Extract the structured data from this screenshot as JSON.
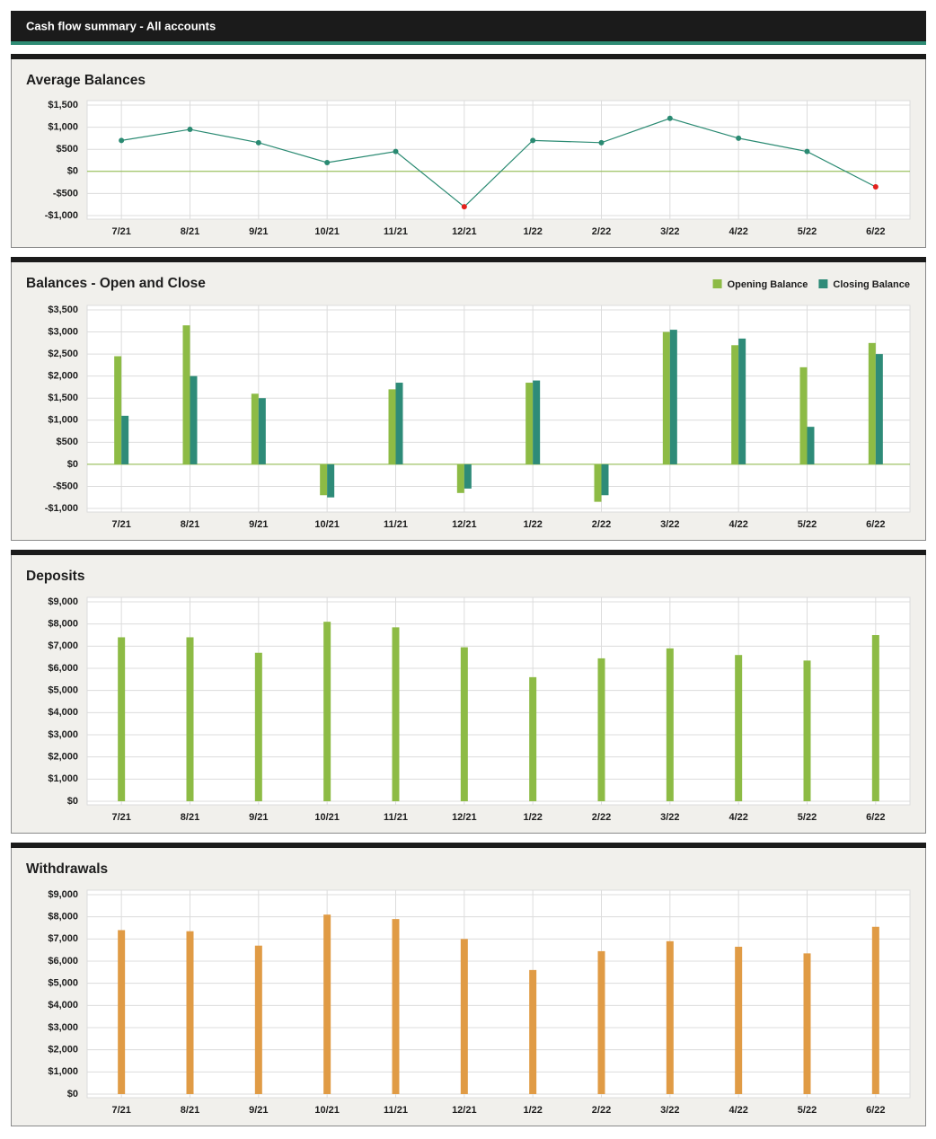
{
  "header": {
    "title": "Cash flow summary -  All accounts"
  },
  "chart_data": [
    {
      "type": "line",
      "title": "Average Balances",
      "categories": [
        "7/21",
        "8/21",
        "9/21",
        "10/21",
        "11/21",
        "12/21",
        "1/22",
        "2/22",
        "3/22",
        "4/22",
        "5/22",
        "6/22"
      ],
      "values": [
        700,
        950,
        650,
        200,
        450,
        -800,
        700,
        650,
        1200,
        750,
        450,
        -350
      ],
      "color": "#2a8a72",
      "negative_color": "#e3211c",
      "ylim": [
        -1000,
        1500
      ],
      "yticks": [
        {
          "value": -1000,
          "label": "-$1,000"
        },
        {
          "value": -500,
          "label": "-$500"
        },
        {
          "value": 0,
          "label": "$0"
        },
        {
          "value": 500,
          "label": "$500"
        },
        {
          "value": 1000,
          "label": "$1,000"
        },
        {
          "value": 1500,
          "label": "$1,500"
        }
      ],
      "grid": true
    },
    {
      "type": "bar",
      "title": "Balances - Open and Close",
      "categories": [
        "7/21",
        "8/21",
        "9/21",
        "10/21",
        "11/21",
        "12/21",
        "1/22",
        "2/22",
        "3/22",
        "4/22",
        "5/22",
        "6/22"
      ],
      "series": [
        {
          "name": "Opening Balance",
          "color": "#8dbb45",
          "values": [
            2450,
            3150,
            1600,
            -700,
            1700,
            -650,
            1850,
            -850,
            3000,
            2700,
            2200,
            2750
          ]
        },
        {
          "name": "Closing Balance",
          "color": "#2e8b78",
          "values": [
            1100,
            2000,
            1500,
            -750,
            1850,
            -550,
            1900,
            -700,
            3050,
            2850,
            850,
            2500
          ]
        }
      ],
      "legend": "top-right",
      "ylim": [
        -1000,
        3500
      ],
      "yticks": [
        {
          "value": -1000,
          "label": "-$1,000"
        },
        {
          "value": -500,
          "label": "-$500"
        },
        {
          "value": 0,
          "label": "$0"
        },
        {
          "value": 500,
          "label": "$500"
        },
        {
          "value": 1000,
          "label": "$1,000"
        },
        {
          "value": 1500,
          "label": "$1,500"
        },
        {
          "value": 2000,
          "label": "$2,000"
        },
        {
          "value": 2500,
          "label": "$2,500"
        },
        {
          "value": 3000,
          "label": "$3,000"
        },
        {
          "value": 3500,
          "label": "$3,500"
        }
      ],
      "grid": true
    },
    {
      "type": "bar",
      "title": "Deposits",
      "categories": [
        "7/21",
        "8/21",
        "9/21",
        "10/21",
        "11/21",
        "12/21",
        "1/22",
        "2/22",
        "3/22",
        "4/22",
        "5/22",
        "6/22"
      ],
      "values": [
        7400,
        7400,
        6700,
        8100,
        7850,
        6950,
        5600,
        6450,
        6900,
        6600,
        6350,
        7500
      ],
      "color": "#8dbb45",
      "ylim": [
        0,
        9000
      ],
      "yticks": [
        {
          "value": 0,
          "label": "$0"
        },
        {
          "value": 1000,
          "label": "$1,000"
        },
        {
          "value": 2000,
          "label": "$2,000"
        },
        {
          "value": 3000,
          "label": "$3,000"
        },
        {
          "value": 4000,
          "label": "$4,000"
        },
        {
          "value": 5000,
          "label": "$5,000"
        },
        {
          "value": 6000,
          "label": "$6,000"
        },
        {
          "value": 7000,
          "label": "$7,000"
        },
        {
          "value": 8000,
          "label": "$8,000"
        },
        {
          "value": 9000,
          "label": "$9,000"
        }
      ],
      "grid": true
    },
    {
      "type": "bar",
      "title": "Withdrawals",
      "categories": [
        "7/21",
        "8/21",
        "9/21",
        "10/21",
        "11/21",
        "12/21",
        "1/22",
        "2/22",
        "3/22",
        "4/22",
        "5/22",
        "6/22"
      ],
      "values": [
        7400,
        7350,
        6700,
        8100,
        7900,
        7000,
        5600,
        6450,
        6900,
        6650,
        6350,
        7550
      ],
      "color": "#e09b45",
      "ylim": [
        0,
        9000
      ],
      "yticks": [
        {
          "value": 0,
          "label": "$0"
        },
        {
          "value": 1000,
          "label": "$1,000"
        },
        {
          "value": 2000,
          "label": "$2,000"
        },
        {
          "value": 3000,
          "label": "$3,000"
        },
        {
          "value": 4000,
          "label": "$4,000"
        },
        {
          "value": 5000,
          "label": "$5,000"
        },
        {
          "value": 6000,
          "label": "$6,000"
        },
        {
          "value": 7000,
          "label": "$7,000"
        },
        {
          "value": 8000,
          "label": "$8,000"
        },
        {
          "value": 9000,
          "label": "$9,000"
        }
      ],
      "grid": true
    }
  ]
}
